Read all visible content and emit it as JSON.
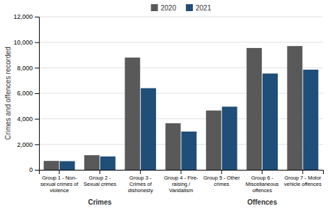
{
  "chart_data": {
    "type": "bar",
    "categories": [
      "Group 1 - Non-\nsexual crimes of\nviolence",
      "Group 2 -\nSexual crimes",
      "Group 3 -\nCrimes of\ndishonesty",
      "Group 4 - Fire-\nraising /\nVandalism",
      "Group 5 - Other\ncrimes",
      "Group 6 -\nMiscellaneous\noffences",
      "Group 7 - Motor\nvehicle offences"
    ],
    "series": [
      {
        "name": "2020",
        "color": "#595959",
        "values": [
          700,
          1150,
          8800,
          3650,
          4650,
          9550,
          9700
        ]
      },
      {
        "name": "2021",
        "color": "#1f4e79",
        "values": [
          680,
          1050,
          6400,
          3000,
          4950,
          7550,
          7850
        ]
      }
    ],
    "ylabel": "Crimes and offences recorded",
    "ylim": [
      0,
      12000
    ],
    "yticks": [
      0,
      {
        "value": 2000,
        "label": "2,000"
      },
      {
        "value": 4000,
        "label": "4,000"
      },
      {
        "value": 6000,
        "label": "6,000"
      },
      {
        "value": 8000,
        "label": "8,000"
      },
      {
        "value": 10000,
        "label": "10,000"
      },
      {
        "value": 12000,
        "label": "12,000"
      }
    ],
    "grid": true,
    "legend": "top",
    "annotations": [
      {
        "text": "Crimes",
        "x": 1
      },
      {
        "text": "Offences",
        "x": 5
      }
    ]
  }
}
